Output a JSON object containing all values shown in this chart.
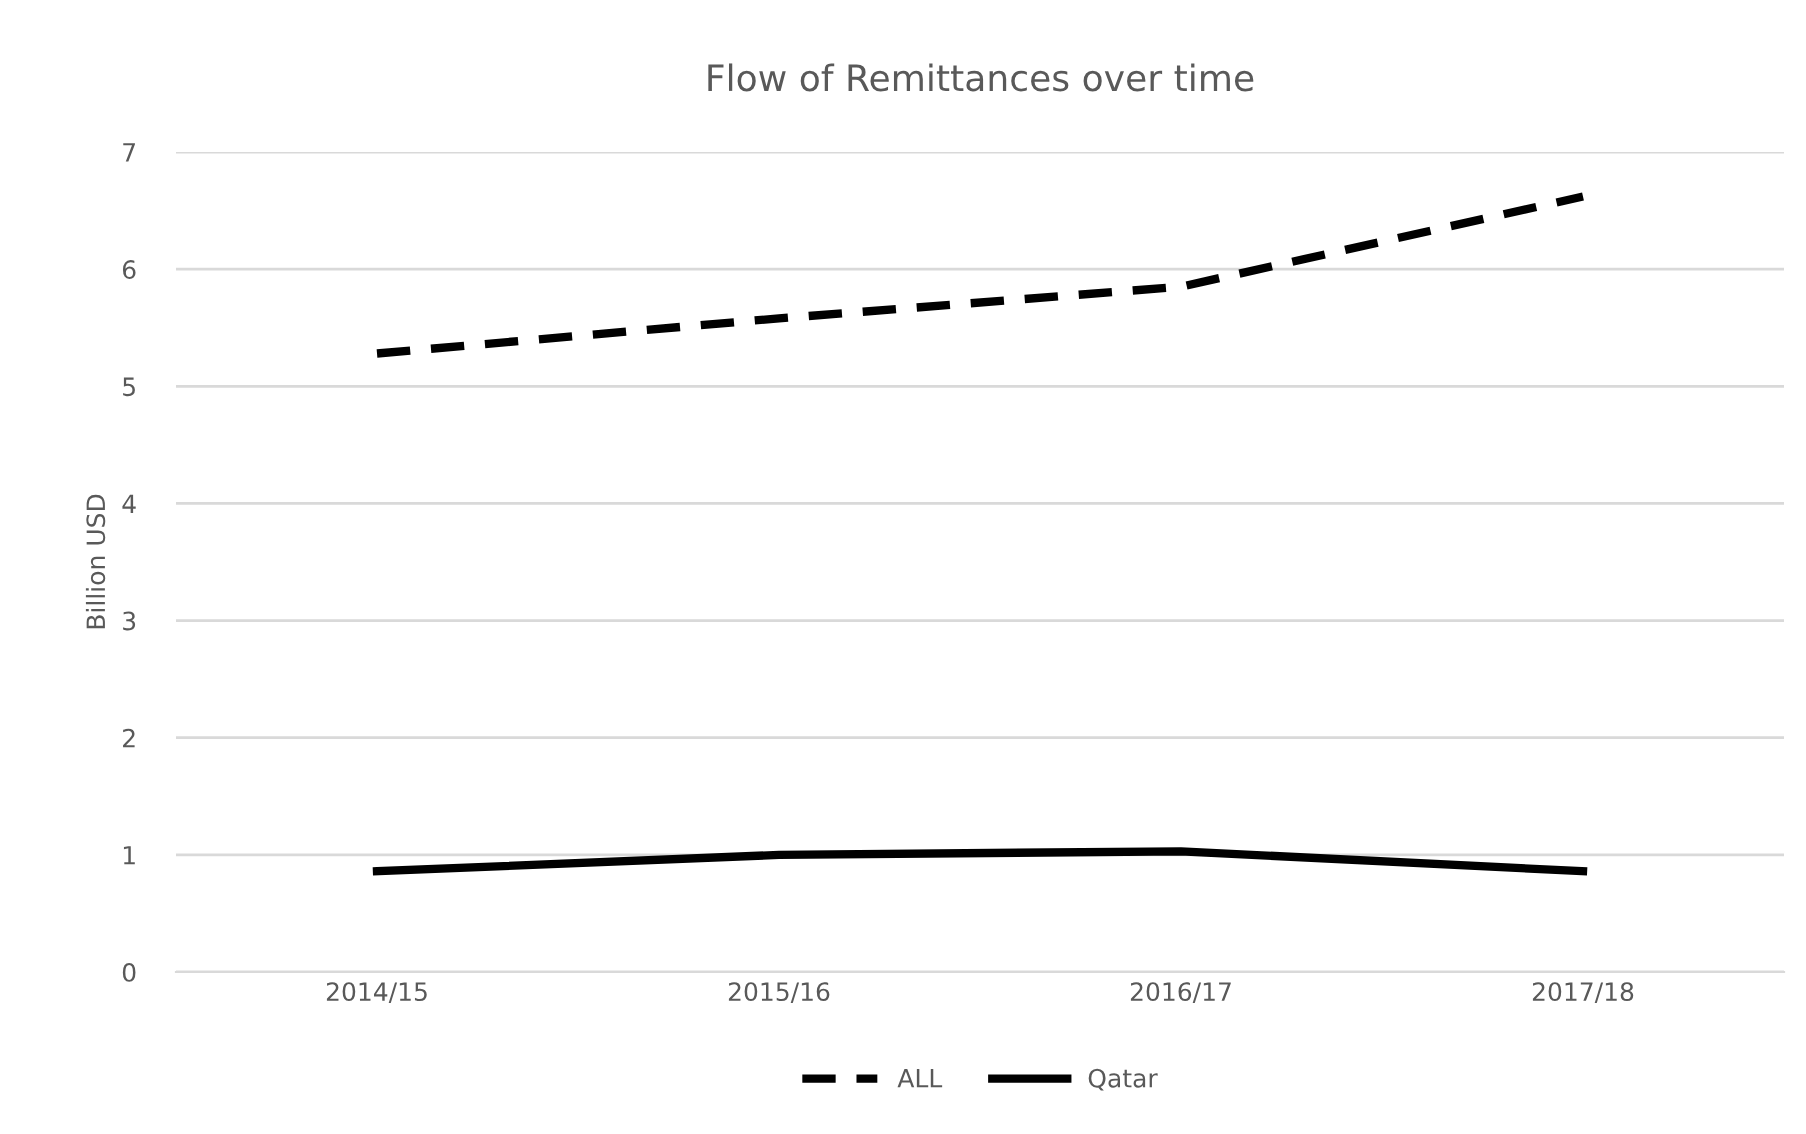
{
  "chart_data": {
    "type": "line",
    "title": "Flow of Remittances over time",
    "ylabel": "Billion USD",
    "categories": [
      "2014/15",
      "2015/16",
      "2016/17",
      "2017/18"
    ],
    "series": [
      {
        "name": "ALL",
        "color": "#000000",
        "line_style": "dashed",
        "values": [
          5.28,
          5.58,
          5.85,
          6.62
        ]
      },
      {
        "name": "Qatar",
        "color": "#000000",
        "line_style": "solid",
        "values": [
          0.86,
          1.0,
          1.03,
          0.86
        ]
      }
    ],
    "ylim": [
      0,
      7
    ],
    "yticks": [
      0,
      1,
      2,
      3,
      4,
      5,
      6,
      7
    ],
    "grid": "y",
    "legend": "bottom",
    "marker": "none"
  }
}
